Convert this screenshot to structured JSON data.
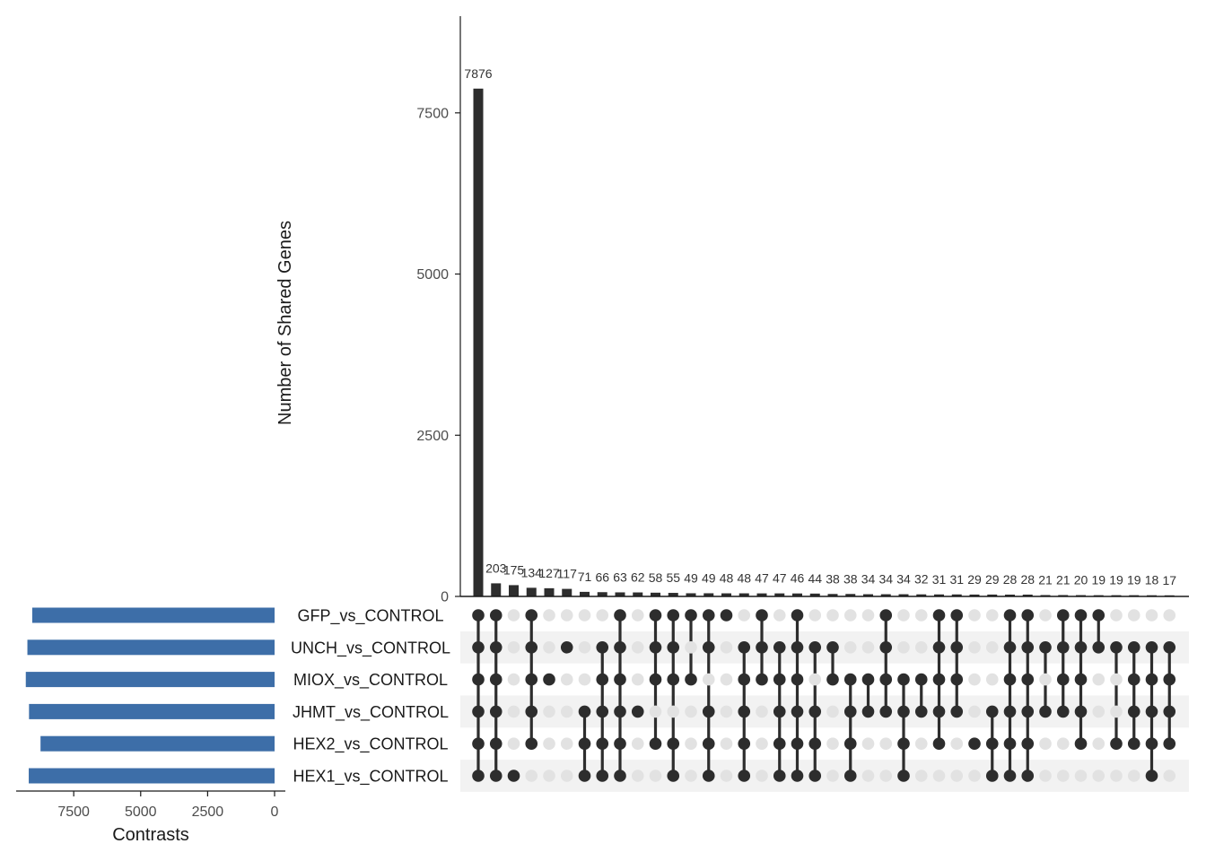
{
  "chart_data": {
    "type": "bar",
    "title": "",
    "ylabel": "Number of Shared Genes",
    "ylim": [
      0,
      9000
    ],
    "yticks": [
      0,
      2500,
      5000,
      7500
    ],
    "intersection_sizes": [
      7876,
      203,
      175,
      134,
      127,
      117,
      71,
      66,
      63,
      62,
      58,
      55,
      49,
      49,
      48,
      48,
      47,
      47,
      46,
      44,
      38,
      38,
      34,
      34,
      34,
      32,
      31,
      31,
      29,
      29,
      28,
      28,
      21,
      21,
      20,
      19,
      19,
      19,
      18,
      17
    ],
    "intersection_labels": [
      "7876",
      "203",
      "175",
      "134",
      "127",
      "117",
      "71",
      "66",
      "63",
      "62",
      "58",
      "55",
      "49",
      "49",
      "48",
      "48",
      "47",
      "47",
      "46",
      "44",
      "38",
      "38",
      "34",
      "34",
      "34",
      "32",
      "31",
      "31",
      "29",
      "29",
      "28",
      "28",
      "21",
      "21",
      "20",
      "19",
      "19",
      "19",
      "18",
      "17"
    ],
    "sets": [
      "GFP_vs_CONTROL",
      "UNCH_vs_CONTROL",
      "MIOX_vs_CONTROL",
      "JHMT_vs_CONTROL",
      "HEX2_vs_CONTROL",
      "HEX1_vs_CONTROL"
    ],
    "set_sizes": [
      9050,
      9230,
      9290,
      9170,
      8740,
      9180
    ],
    "set_size_axis": {
      "xlabel": "Contrasts",
      "ticks": [
        7500,
        5000,
        2500,
        0
      ],
      "tick_labels": [
        "7500",
        "5000",
        "2500",
        "0"
      ],
      "xlim": [
        0,
        9650
      ]
    },
    "membership": [
      [
        1,
        1,
        1,
        1,
        1,
        1
      ],
      [
        1,
        1,
        1,
        1,
        1,
        1
      ],
      [
        0,
        0,
        0,
        0,
        0,
        1
      ],
      [
        1,
        1,
        1,
        1,
        1,
        0
      ],
      [
        0,
        0,
        1,
        0,
        0,
        0
      ],
      [
        0,
        1,
        0,
        0,
        0,
        0
      ],
      [
        0,
        0,
        0,
        1,
        1,
        1
      ],
      [
        0,
        1,
        1,
        1,
        1,
        1
      ],
      [
        1,
        1,
        1,
        1,
        1,
        1
      ],
      [
        0,
        0,
        0,
        1,
        0,
        0
      ],
      [
        1,
        1,
        1,
        0,
        1,
        0
      ],
      [
        1,
        1,
        1,
        0,
        1,
        1
      ],
      [
        1,
        0,
        1,
        0,
        0,
        0
      ],
      [
        1,
        1,
        0,
        1,
        1,
        1
      ],
      [
        1,
        0,
        0,
        0,
        0,
        0
      ],
      [
        0,
        1,
        1,
        1,
        1,
        1
      ],
      [
        1,
        1,
        1,
        0,
        0,
        0
      ],
      [
        0,
        1,
        1,
        1,
        1,
        1
      ],
      [
        1,
        1,
        1,
        1,
        1,
        1
      ],
      [
        0,
        1,
        0,
        1,
        1,
        1
      ],
      [
        0,
        1,
        1,
        0,
        0,
        0
      ],
      [
        0,
        0,
        1,
        1,
        1,
        1
      ],
      [
        0,
        0,
        1,
        1,
        0,
        0
      ],
      [
        1,
        1,
        1,
        1,
        0,
        0
      ],
      [
        0,
        0,
        1,
        1,
        1,
        1
      ],
      [
        0,
        0,
        1,
        1,
        0,
        0
      ],
      [
        1,
        1,
        1,
        1,
        1,
        0
      ],
      [
        1,
        1,
        1,
        1,
        0,
        0
      ],
      [
        0,
        0,
        0,
        0,
        1,
        0
      ],
      [
        0,
        0,
        0,
        1,
        1,
        1
      ],
      [
        1,
        1,
        1,
        1,
        1,
        1
      ],
      [
        1,
        1,
        1,
        1,
        1,
        1
      ],
      [
        0,
        1,
        0,
        1,
        0,
        0
      ],
      [
        1,
        1,
        1,
        1,
        0,
        0
      ],
      [
        1,
        1,
        1,
        1,
        1,
        0
      ],
      [
        1,
        1,
        0,
        0,
        0,
        0
      ],
      [
        0,
        1,
        0,
        0,
        1,
        0
      ],
      [
        0,
        1,
        1,
        1,
        1,
        0
      ],
      [
        0,
        1,
        1,
        1,
        1,
        1
      ],
      [
        0,
        1,
        1,
        1,
        1,
        0
      ]
    ]
  },
  "colors": {
    "bar": "#2d2d2d",
    "set_bar": "#3d6ea8",
    "dot_on": "#2d2d2d",
    "dot_off": "#e2e2e2",
    "stripe": "#f2f2f2"
  }
}
